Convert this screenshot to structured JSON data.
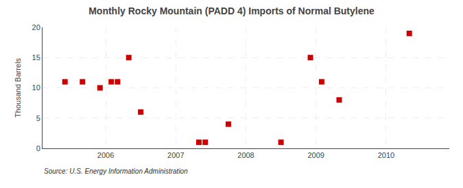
{
  "chart_data": {
    "type": "scatter",
    "title": "Monthly Rocky Mountain (PADD 4) Imports of Normal Butylene",
    "ylabel": "Thousand Barrels",
    "annotations": [
      "Source: U.S. Energy Information Administration"
    ],
    "x": [
      2005.42,
      2005.67,
      2005.92,
      2006.08,
      2006.17,
      2006.33,
      2006.5,
      2007.33,
      2007.42,
      2007.75,
      2008.5,
      2008.92,
      2009.08,
      2009.33,
      2010.33
    ],
    "values": [
      11,
      11,
      10,
      11,
      11,
      15,
      6,
      1,
      1,
      4,
      1,
      15,
      11,
      8,
      19
    ],
    "color": "#cc0000",
    "marker": "square",
    "xlim": [
      2005.1,
      2010.9
    ],
    "xticks": [
      2006,
      2007,
      2008,
      2009,
      2010
    ],
    "ylim": [
      0,
      20
    ],
    "yticks": [
      0,
      5,
      10,
      15,
      20
    ],
    "grid": true
  }
}
